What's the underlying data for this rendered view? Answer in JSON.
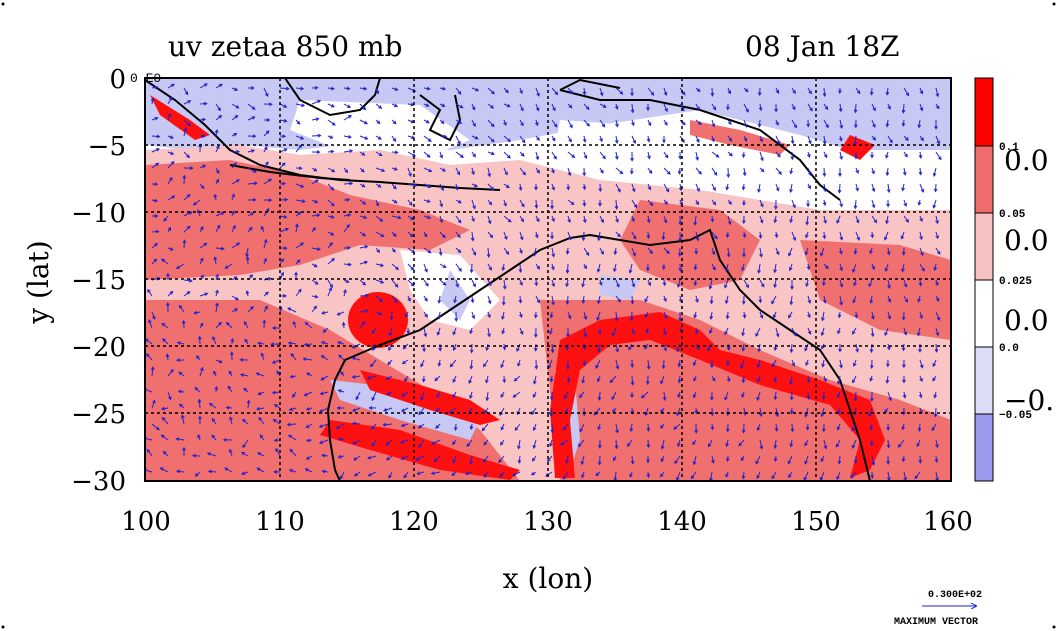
{
  "title_left": "uv zetaa 850 mb",
  "title_right": "08 Jan 18Z",
  "xlabel": "x (lon)",
  "ylabel": "y (lat)",
  "corner_label": "0 E0",
  "x_ticks": [
    "100",
    "110",
    "120",
    "130",
    "140",
    "150",
    "160"
  ],
  "y_ticks": [
    "0",
    "−5",
    "−10",
    "−15",
    "−20",
    "−25",
    "−30"
  ],
  "colorbar": {
    "big_labels": [
      "0.0",
      "0.0",
      "0.0",
      "−0."
    ],
    "small_labels": [
      "0.1",
      "0.05",
      "0.025",
      "0.0",
      "−0.05"
    ],
    "colors": [
      "#ff0000",
      "#f06b6b",
      "#f7c1c1",
      "#ffffff",
      "#dcdcf8",
      "#9999ee"
    ]
  },
  "vector_legend": {
    "value": "0.300E+02",
    "caption": "MAXIMUM VECTOR"
  },
  "colors": {
    "strong_positive": "#ff1010",
    "positive": "#f07070",
    "weak_positive": "#f8c4c4",
    "negative": "#c8c8f4",
    "strong_negative": "#9999ee",
    "vector": "#2222cc",
    "coast": "#000000",
    "contour": "#ff0000"
  },
  "chart_data": {
    "type": "heatmap",
    "title": "uv zetaa 850 mb",
    "subtitle": "08 Jan 18Z",
    "xlabel": "x (lon)",
    "ylabel": "y (lat)",
    "xlim": [
      100,
      160
    ],
    "ylim": [
      -30,
      0
    ],
    "grid": true,
    "colorbar_levels": [
      -0.05,
      0.0,
      0.025,
      0.05,
      0.1
    ],
    "vector_reference": "0.300E+02"
  }
}
